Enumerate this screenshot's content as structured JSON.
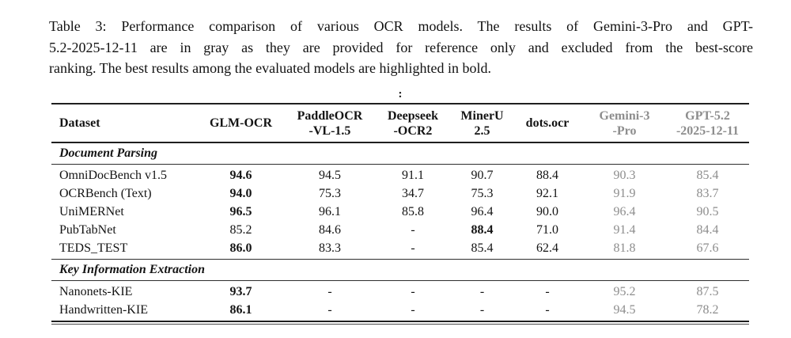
{
  "caption": {
    "lines": [
      "Table 3: Performance comparison of various OCR models. The results of Gemini-3-Pro and GPT-",
      "5.2-2025-12-11 are in gray as they are provided for reference only and excluded from the best-score",
      "ranking. The best results among the evaluated models are highlighted in bold."
    ]
  },
  "stray_mark": ":",
  "table": {
    "columns": [
      {
        "id": "dataset",
        "lines": [
          "Dataset"
        ],
        "gray": false
      },
      {
        "id": "glm-ocr",
        "lines": [
          "GLM-OCR"
        ],
        "gray": false
      },
      {
        "id": "paddleocr-vl-1-5",
        "lines": [
          "PaddleOCR",
          "-VL-1.5"
        ],
        "gray": false
      },
      {
        "id": "deepseek-ocr2",
        "lines": [
          "Deepseek",
          "-OCR2"
        ],
        "gray": false
      },
      {
        "id": "mineru-2-5",
        "lines": [
          "MinerU",
          "2.5"
        ],
        "gray": false
      },
      {
        "id": "dots-ocr",
        "lines": [
          "dots.ocr"
        ],
        "gray": false
      },
      {
        "id": "gemini-3-pro",
        "lines": [
          "Gemini-3",
          "-Pro"
        ],
        "gray": true
      },
      {
        "id": "gpt-5-2-2025-12-11",
        "lines": [
          "GPT-5.2",
          "-2025-12-11"
        ],
        "gray": true
      }
    ],
    "sections": [
      {
        "title": "Document Parsing",
        "rows": [
          {
            "dataset": "OmniDocBench v1.5",
            "values": [
              "94.6",
              "94.5",
              "91.1",
              "90.7",
              "88.4",
              "90.3",
              "85.4"
            ],
            "bold": [
              0
            ]
          },
          {
            "dataset": "OCRBench (Text)",
            "values": [
              "94.0",
              "75.3",
              "34.7",
              "75.3",
              "92.1",
              "91.9",
              "83.7"
            ],
            "bold": [
              0
            ]
          },
          {
            "dataset": "UniMERNet",
            "values": [
              "96.5",
              "96.1",
              "85.8",
              "96.4",
              "90.0",
              "96.4",
              "90.5"
            ],
            "bold": [
              0
            ]
          },
          {
            "dataset": "PubTabNet",
            "values": [
              "85.2",
              "84.6",
              "-",
              "88.4",
              "71.0",
              "91.4",
              "84.4"
            ],
            "bold": [
              3
            ]
          },
          {
            "dataset": "TEDS_TEST",
            "values": [
              "86.0",
              "83.3",
              "-",
              "85.4",
              "62.4",
              "81.8",
              "67.6"
            ],
            "bold": [
              0
            ]
          }
        ]
      },
      {
        "title": "Key Information Extraction",
        "rows": [
          {
            "dataset": "Nanonets-KIE",
            "values": [
              "93.7",
              "-",
              "-",
              "-",
              "-",
              "95.2",
              "87.5"
            ],
            "bold": [
              0
            ]
          },
          {
            "dataset": "Handwritten-KIE",
            "values": [
              "86.1",
              "-",
              "-",
              "-",
              "-",
              "94.5",
              "78.2"
            ],
            "bold": [
              0
            ]
          }
        ]
      }
    ]
  },
  "colors": {
    "text": "#141414",
    "gray_reference": "#8d8d8d",
    "rule_heavy": "#1f1f1f",
    "rule_light": "#2e2e2e",
    "background": "#ffffff"
  }
}
